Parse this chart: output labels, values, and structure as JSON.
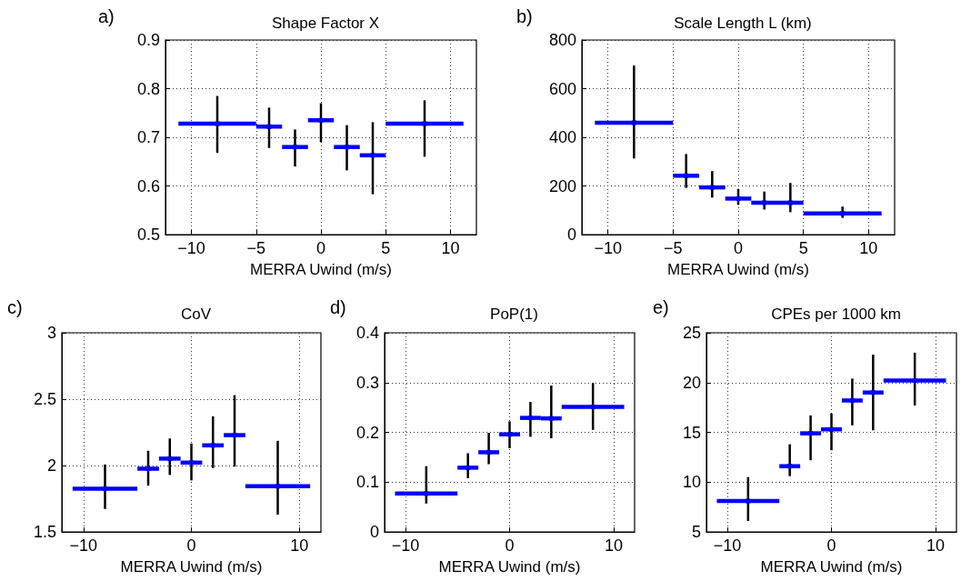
{
  "chart_data": [
    {
      "type": "scatter",
      "title": "Shape Factor X",
      "xlabel": "MERRA Uwind (m/s)",
      "annotations": [
        "a)"
      ],
      "xlim": [
        -12,
        12
      ],
      "xticks": [
        -10,
        -5,
        0,
        5,
        10
      ],
      "ylim": [
        0.5,
        0.9
      ],
      "yticks": [
        0.5,
        0.6,
        0.7,
        0.8,
        0.9
      ],
      "grid": true,
      "marker": "square",
      "series": [
        {
          "color": "#0000ff",
          "x": [
            -8,
            -4,
            -2,
            0,
            2,
            4,
            8
          ],
          "values": [
            0.728,
            0.722,
            0.68,
            0.735,
            0.68,
            0.663,
            0.728
          ],
          "xerrors": [
            [
              -11,
              -5
            ],
            [
              -5,
              -3
            ],
            [
              -3,
              -1
            ],
            [
              -1,
              1
            ],
            [
              1,
              3
            ],
            [
              3,
              5
            ],
            [
              5,
              11
            ]
          ],
          "errors": [
            [
              0.668,
              0.785
            ],
            [
              0.678,
              0.761
            ],
            [
              0.64,
              0.716
            ],
            [
              0.69,
              0.77
            ],
            [
              0.632,
              0.725
            ],
            [
              0.583,
              0.731
            ],
            [
              0.66,
              0.776
            ]
          ]
        }
      ]
    },
    {
      "type": "scatter",
      "title": "Scale Length L (km)",
      "xlabel": "MERRA Uwind (m/s)",
      "annotations": [
        "b)"
      ],
      "xlim": [
        -12,
        12
      ],
      "xticks": [
        -10,
        -5,
        0,
        5,
        10
      ],
      "ylim": [
        0,
        800
      ],
      "yticks": [
        0,
        200,
        400,
        600,
        800
      ],
      "grid": true,
      "marker": "square",
      "series": [
        {
          "color": "#0000ff",
          "x": [
            -8,
            -4,
            -2,
            0,
            2,
            4,
            8
          ],
          "values": [
            460,
            242,
            194,
            148,
            131,
            131,
            87
          ],
          "xerrors": [
            [
              -11,
              -5
            ],
            [
              -5,
              -3
            ],
            [
              -3,
              -1
            ],
            [
              -1,
              1
            ],
            [
              1,
              3
            ],
            [
              3,
              5
            ],
            [
              5,
              11
            ]
          ],
          "errors": [
            [
              313,
              695
            ],
            [
              192,
              331
            ],
            [
              152,
              261
            ],
            [
              122,
              188
            ],
            [
              103,
              177
            ],
            [
              92,
              212
            ],
            [
              69,
              115
            ]
          ]
        }
      ]
    },
    {
      "type": "scatter",
      "title": "CoV",
      "xlabel": "MERRA Uwind (m/s)",
      "annotations": [
        "c)"
      ],
      "xlim": [
        -12,
        12
      ],
      "xticks": [
        -10,
        0,
        10
      ],
      "ylim": [
        1.5,
        3
      ],
      "yticks": [
        1.5,
        2,
        2.5,
        3
      ],
      "grid": true,
      "marker": "square",
      "series": [
        {
          "color": "#0000ff",
          "x": [
            -8,
            -4,
            -2,
            0,
            2,
            4,
            8
          ],
          "values": [
            1.826,
            1.976,
            2.052,
            2.022,
            2.152,
            2.229,
            1.844
          ],
          "xerrors": [
            [
              -11,
              -5
            ],
            [
              -5,
              -3
            ],
            [
              -3,
              -1
            ],
            [
              -1,
              1
            ],
            [
              1,
              3
            ],
            [
              3,
              5
            ],
            [
              5,
              11
            ]
          ],
          "errors": [
            [
              1.673,
              2.008
            ],
            [
              1.849,
              2.111
            ],
            [
              1.929,
              2.204
            ],
            [
              1.888,
              2.166
            ],
            [
              1.981,
              2.371
            ],
            [
              1.992,
              2.53
            ],
            [
              1.63,
              2.186
            ]
          ]
        }
      ]
    },
    {
      "type": "scatter",
      "title": "PoP(1)",
      "xlabel": "MERRA Uwind (m/s)",
      "annotations": [
        "d)"
      ],
      "xlim": [
        -12,
        12
      ],
      "xticks": [
        -10,
        0,
        10
      ],
      "ylim": [
        0,
        0.4
      ],
      "yticks": [
        0,
        0.1,
        0.2,
        0.3,
        0.4
      ],
      "grid": true,
      "marker": "square",
      "series": [
        {
          "color": "#0000ff",
          "x": [
            -8,
            -4,
            -2,
            0,
            2,
            4,
            8
          ],
          "values": [
            0.077,
            0.129,
            0.16,
            0.196,
            0.229,
            0.228,
            0.251
          ],
          "xerrors": [
            [
              -11,
              -5
            ],
            [
              -5,
              -3
            ],
            [
              -3,
              -1
            ],
            [
              -1,
              1
            ],
            [
              1,
              3
            ],
            [
              3,
              5
            ],
            [
              5,
              11
            ]
          ],
          "errors": [
            [
              0.057,
              0.132
            ],
            [
              0.108,
              0.158
            ],
            [
              0.136,
              0.199
            ],
            [
              0.168,
              0.222
            ],
            [
              0.191,
              0.261
            ],
            [
              0.188,
              0.294
            ],
            [
              0.205,
              0.299
            ]
          ]
        }
      ]
    },
    {
      "type": "scatter",
      "title": "CPEs per 1000 km",
      "xlabel": "MERRA Uwind (m/s)",
      "annotations": [
        "e)"
      ],
      "xlim": [
        -12,
        12
      ],
      "xticks": [
        -10,
        0,
        10
      ],
      "ylim": [
        5,
        25
      ],
      "yticks": [
        5,
        10,
        15,
        20,
        25
      ],
      "grid": true,
      "marker": "square",
      "series": [
        {
          "color": "#0000ff",
          "x": [
            -8,
            -4,
            -2,
            0,
            2,
            4,
            8
          ],
          "values": [
            8.1,
            11.6,
            14.9,
            15.3,
            18.2,
            19,
            20.2
          ],
          "xerrors": [
            [
              -11,
              -5
            ],
            [
              -5,
              -3
            ],
            [
              -3,
              -1
            ],
            [
              -1,
              1
            ],
            [
              1,
              3
            ],
            [
              3,
              5
            ],
            [
              5,
              11
            ]
          ],
          "errors": [
            [
              6.1,
              10.5
            ],
            [
              10.6,
              13.8
            ],
            [
              12.2,
              16.7
            ],
            [
              13.2,
              16.9
            ],
            [
              15.7,
              20.4
            ],
            [
              15.2,
              22.8
            ],
            [
              17.7,
              23
            ]
          ]
        }
      ]
    }
  ]
}
